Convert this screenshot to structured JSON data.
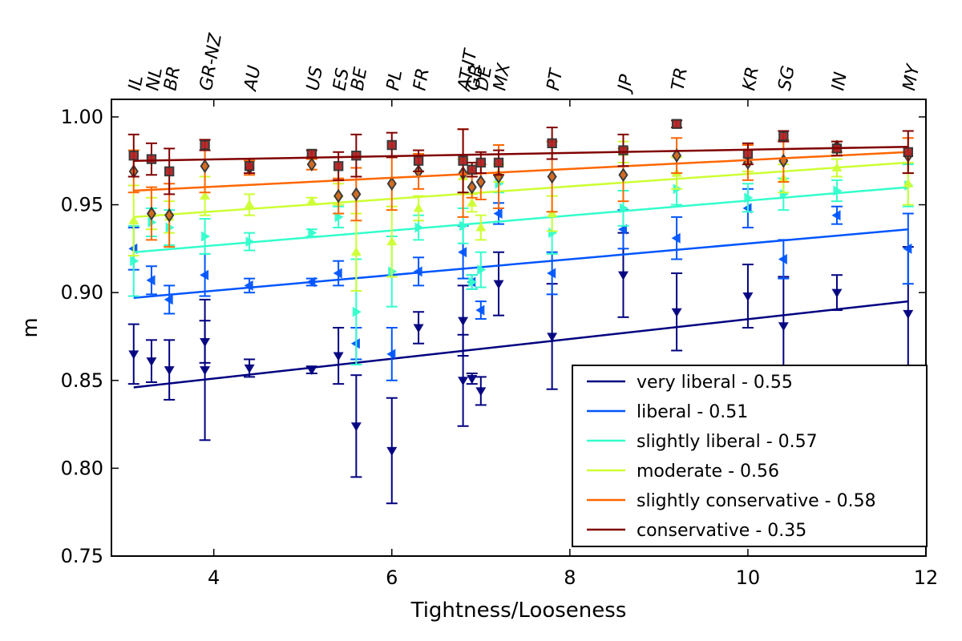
{
  "chart_data": {
    "type": "scatter",
    "xlabel": "Tightness/Looseness",
    "ylabel": "m",
    "xlim": [
      2.85,
      12
    ],
    "ylim": [
      0.75,
      1.01
    ],
    "x_ticks": [
      "4",
      "6",
      "8",
      "10",
      "12"
    ],
    "y_ticks": [
      "1.00",
      "0.95",
      "0.90",
      "0.85",
      "0.80",
      "0.75"
    ],
    "grid": false,
    "legend_position": "bottom-right",
    "top_axis": {
      "labels": [
        "IL",
        "NL",
        "BR",
        "GR-NZ",
        "AU",
        "US",
        "ES",
        "BE",
        "PL",
        "FR",
        "AT-IT",
        "GB",
        "DE",
        "MX",
        "PT",
        "JP",
        "TR",
        "KR",
        "SG",
        "IN",
        "MY"
      ],
      "positions": [
        3.1,
        3.3,
        3.5,
        3.9,
        4.4,
        5.1,
        5.4,
        5.6,
        6.0,
        6.3,
        6.8,
        6.9,
        7.0,
        7.2,
        7.8,
        8.6,
        9.2,
        10.0,
        10.4,
        11.0,
        11.8
      ]
    },
    "series": [
      {
        "name": "very liberal - 0.55",
        "color": "#000080",
        "marker": "triangle-down",
        "fit": [
          [
            3.1,
            0.846
          ],
          [
            11.8,
            0.895
          ]
        ],
        "points": [
          {
            "x": 3.1,
            "y": 0.865,
            "err": 0.017
          },
          {
            "x": 3.3,
            "y": 0.861,
            "err": 0.012
          },
          {
            "x": 3.5,
            "y": 0.856,
            "err": 0.017
          },
          {
            "x": 3.9,
            "y": 0.872,
            "err": 0.012
          },
          {
            "x": 3.9,
            "y": 0.856,
            "err": 0.04
          },
          {
            "x": 4.4,
            "y": 0.857,
            "err": 0.005
          },
          {
            "x": 5.1,
            "y": 0.856,
            "err": 0.002
          },
          {
            "x": 5.4,
            "y": 0.864,
            "err": 0.016
          },
          {
            "x": 5.6,
            "y": 0.824,
            "err": 0.029
          },
          {
            "x": 6.0,
            "y": 0.81,
            "err": 0.03
          },
          {
            "x": 6.3,
            "y": 0.88,
            "err": 0.009
          },
          {
            "x": 6.8,
            "y": 0.884,
            "err": 0.02
          },
          {
            "x": 6.8,
            "y": 0.85,
            "err": 0.026
          },
          {
            "x": 6.9,
            "y": 0.851,
            "err": 0.003
          },
          {
            "x": 7.0,
            "y": 0.844,
            "err": 0.008
          },
          {
            "x": 7.2,
            "y": 0.905,
            "err": 0.018
          },
          {
            "x": 7.8,
            "y": 0.875,
            "err": 0.03
          },
          {
            "x": 8.6,
            "y": 0.91,
            "err": 0.024
          },
          {
            "x": 9.2,
            "y": 0.889,
            "err": 0.022
          },
          {
            "x": 10.0,
            "y": 0.898,
            "err": 0.018
          },
          {
            "x": 10.4,
            "y": 0.881,
            "err": 0.028
          },
          {
            "x": 11.0,
            "y": 0.9,
            "err": 0.01
          },
          {
            "x": 11.8,
            "y": 0.888,
            "err": 0.038
          }
        ]
      },
      {
        "name": "liberal - 0.51",
        "color": "#0055ff",
        "marker": "triangle-left",
        "fit": [
          [
            3.1,
            0.897
          ],
          [
            11.8,
            0.936
          ]
        ],
        "points": [
          {
            "x": 3.1,
            "y": 0.925,
            "err": 0.012
          },
          {
            "x": 3.3,
            "y": 0.907,
            "err": 0.008
          },
          {
            "x": 3.5,
            "y": 0.896,
            "err": 0.008
          },
          {
            "x": 3.9,
            "y": 0.91,
            "err": 0.012
          },
          {
            "x": 4.4,
            "y": 0.904,
            "err": 0.004
          },
          {
            "x": 5.1,
            "y": 0.906,
            "err": 0.002
          },
          {
            "x": 5.4,
            "y": 0.911,
            "err": 0.007
          },
          {
            "x": 5.6,
            "y": 0.871,
            "err": 0.009
          },
          {
            "x": 6.0,
            "y": 0.865,
            "err": 0.015
          },
          {
            "x": 6.3,
            "y": 0.912,
            "err": 0.008
          },
          {
            "x": 6.8,
            "y": 0.923,
            "err": 0.015
          },
          {
            "x": 6.9,
            "y": 0.906,
            "err": 0.004
          },
          {
            "x": 7.0,
            "y": 0.89,
            "err": 0.005
          },
          {
            "x": 7.2,
            "y": 0.945,
            "err": 0.006
          },
          {
            "x": 7.8,
            "y": 0.911,
            "err": 0.012
          },
          {
            "x": 8.6,
            "y": 0.936,
            "err": 0.011
          },
          {
            "x": 9.2,
            "y": 0.931,
            "err": 0.012
          },
          {
            "x": 10.0,
            "y": 0.948,
            "err": 0.011
          },
          {
            "x": 10.4,
            "y": 0.919,
            "err": 0.011
          },
          {
            "x": 11.0,
            "y": 0.944,
            "err": 0.005
          },
          {
            "x": 11.8,
            "y": 0.925,
            "err": 0.02
          }
        ]
      },
      {
        "name": "slightly liberal - 0.57",
        "color": "#33ffcc",
        "marker": "triangle-right",
        "fit": [
          [
            3.1,
            0.923
          ],
          [
            11.8,
            0.96
          ]
        ],
        "points": [
          {
            "x": 3.1,
            "y": 0.918,
            "err": 0.02
          },
          {
            "x": 3.3,
            "y": 0.94,
            "err": 0.008
          },
          {
            "x": 3.5,
            "y": 0.937,
            "err": 0.01
          },
          {
            "x": 3.9,
            "y": 0.932,
            "err": 0.01
          },
          {
            "x": 4.4,
            "y": 0.929,
            "err": 0.005
          },
          {
            "x": 5.1,
            "y": 0.934,
            "err": 0.002
          },
          {
            "x": 5.4,
            "y": 0.943,
            "err": 0.006
          },
          {
            "x": 5.6,
            "y": 0.889,
            "err": 0.03
          },
          {
            "x": 6.0,
            "y": 0.912,
            "err": 0.02
          },
          {
            "x": 6.3,
            "y": 0.937,
            "err": 0.007
          },
          {
            "x": 6.8,
            "y": 0.938,
            "err": 0.01
          },
          {
            "x": 6.9,
            "y": 0.906,
            "err": 0.004
          },
          {
            "x": 7.0,
            "y": 0.913,
            "err": 0.01
          },
          {
            "x": 7.2,
            "y": 0.962,
            "err": 0.005
          },
          {
            "x": 7.8,
            "y": 0.934,
            "err": 0.012
          },
          {
            "x": 8.6,
            "y": 0.948,
            "err": 0.01
          },
          {
            "x": 9.2,
            "y": 0.959,
            "err": 0.009
          },
          {
            "x": 10.0,
            "y": 0.954,
            "err": 0.008
          },
          {
            "x": 10.4,
            "y": 0.956,
            "err": 0.009
          },
          {
            "x": 11.0,
            "y": 0.958,
            "err": 0.006
          },
          {
            "x": 11.8,
            "y": 0.961,
            "err": 0.012
          }
        ]
      },
      {
        "name": "moderate - 0.56",
        "color": "#ccff33",
        "marker": "triangle-up",
        "fit": [
          [
            3.1,
            0.943
          ],
          [
            11.8,
            0.974
          ]
        ],
        "points": [
          {
            "x": 3.1,
            "y": 0.941,
            "err": 0.02
          },
          {
            "x": 3.3,
            "y": 0.945,
            "err": 0.009
          },
          {
            "x": 3.5,
            "y": 0.943,
            "err": 0.009
          },
          {
            "x": 3.9,
            "y": 0.955,
            "err": 0.011
          },
          {
            "x": 4.4,
            "y": 0.95,
            "err": 0.006
          },
          {
            "x": 5.1,
            "y": 0.952,
            "err": 0.002
          },
          {
            "x": 5.4,
            "y": 0.956,
            "err": 0.006
          },
          {
            "x": 5.6,
            "y": 0.923,
            "err": 0.022
          },
          {
            "x": 6.0,
            "y": 0.929,
            "err": 0.02
          },
          {
            "x": 6.3,
            "y": 0.948,
            "err": 0.007
          },
          {
            "x": 6.8,
            "y": 0.966,
            "err": 0.01
          },
          {
            "x": 6.9,
            "y": 0.951,
            "err": 0.005
          },
          {
            "x": 7.0,
            "y": 0.937,
            "err": 0.007
          },
          {
            "x": 7.2,
            "y": 0.968,
            "err": 0.005
          },
          {
            "x": 7.8,
            "y": 0.945,
            "err": 0.01
          },
          {
            "x": 8.6,
            "y": 0.98,
            "err": 0.006
          },
          {
            "x": 9.2,
            "y": 0.968,
            "err": 0.009
          },
          {
            "x": 10.0,
            "y": 0.975,
            "err": 0.006
          },
          {
            "x": 10.4,
            "y": 0.965,
            "err": 0.008
          },
          {
            "x": 11.0,
            "y": 0.971,
            "err": 0.005
          },
          {
            "x": 11.8,
            "y": 0.962,
            "err": 0.012
          }
        ]
      },
      {
        "name": "slightly conservative - 0.58",
        "color": "#ff6600",
        "marker": "diamond",
        "fit": [
          [
            3.1,
            0.958
          ],
          [
            11.8,
            0.98
          ]
        ],
        "points": [
          {
            "x": 3.1,
            "y": 0.969,
            "err": 0.012
          },
          {
            "x": 3.3,
            "y": 0.945,
            "err": 0.015
          },
          {
            "x": 3.5,
            "y": 0.944,
            "err": 0.018
          },
          {
            "x": 3.9,
            "y": 0.972,
            "err": 0.015
          },
          {
            "x": 4.4,
            "y": 0.971,
            "err": 0.004
          },
          {
            "x": 5.1,
            "y": 0.973,
            "err": 0.003
          },
          {
            "x": 5.4,
            "y": 0.955,
            "err": 0.01
          },
          {
            "x": 5.6,
            "y": 0.956,
            "err": 0.015
          },
          {
            "x": 6.0,
            "y": 0.962,
            "err": 0.015
          },
          {
            "x": 6.3,
            "y": 0.969,
            "err": 0.01
          },
          {
            "x": 6.8,
            "y": 0.968,
            "err": 0.025
          },
          {
            "x": 6.9,
            "y": 0.96,
            "err": 0.006
          },
          {
            "x": 7.0,
            "y": 0.963,
            "err": 0.01
          },
          {
            "x": 7.2,
            "y": 0.966,
            "err": 0.018
          },
          {
            "x": 7.8,
            "y": 0.966,
            "err": 0.02
          },
          {
            "x": 8.6,
            "y": 0.967,
            "err": 0.015
          },
          {
            "x": 9.2,
            "y": 0.978,
            "err": 0.01
          },
          {
            "x": 10.0,
            "y": 0.974,
            "err": 0.01
          },
          {
            "x": 10.4,
            "y": 0.975,
            "err": 0.012
          },
          {
            "x": 11.0,
            "y": 0.983,
            "err": 0.003
          },
          {
            "x": 11.8,
            "y": 0.978,
            "err": 0.01
          }
        ]
      },
      {
        "name": "conservative - 0.35",
        "color": "#800000",
        "marker": "square",
        "fit": [
          [
            3.1,
            0.975
          ],
          [
            11.8,
            0.983
          ]
        ],
        "points": [
          {
            "x": 3.1,
            "y": 0.978,
            "err": 0.012
          },
          {
            "x": 3.3,
            "y": 0.976,
            "err": 0.009
          },
          {
            "x": 3.5,
            "y": 0.969,
            "err": 0.013
          },
          {
            "x": 3.9,
            "y": 0.984,
            "err": 0.003
          },
          {
            "x": 4.4,
            "y": 0.972,
            "err": 0.004
          },
          {
            "x": 5.1,
            "y": 0.979,
            "err": 0.002
          },
          {
            "x": 5.4,
            "y": 0.972,
            "err": 0.008
          },
          {
            "x": 5.6,
            "y": 0.978,
            "err": 0.012
          },
          {
            "x": 6.0,
            "y": 0.984,
            "err": 0.007
          },
          {
            "x": 6.3,
            "y": 0.975,
            "err": 0.006
          },
          {
            "x": 6.8,
            "y": 0.975,
            "err": 0.018
          },
          {
            "x": 6.9,
            "y": 0.97,
            "err": 0.004
          },
          {
            "x": 7.0,
            "y": 0.974,
            "err": 0.006
          },
          {
            "x": 7.2,
            "y": 0.974,
            "err": 0.007
          },
          {
            "x": 7.8,
            "y": 0.985,
            "err": 0.009
          },
          {
            "x": 8.6,
            "y": 0.981,
            "err": 0.009
          },
          {
            "x": 9.2,
            "y": 0.996,
            "err": 0.002
          },
          {
            "x": 10.0,
            "y": 0.979,
            "err": 0.006
          },
          {
            "x": 10.4,
            "y": 0.989,
            "err": 0.003
          },
          {
            "x": 11.0,
            "y": 0.982,
            "err": 0.004
          },
          {
            "x": 11.8,
            "y": 0.98,
            "err": 0.012
          }
        ]
      }
    ]
  }
}
